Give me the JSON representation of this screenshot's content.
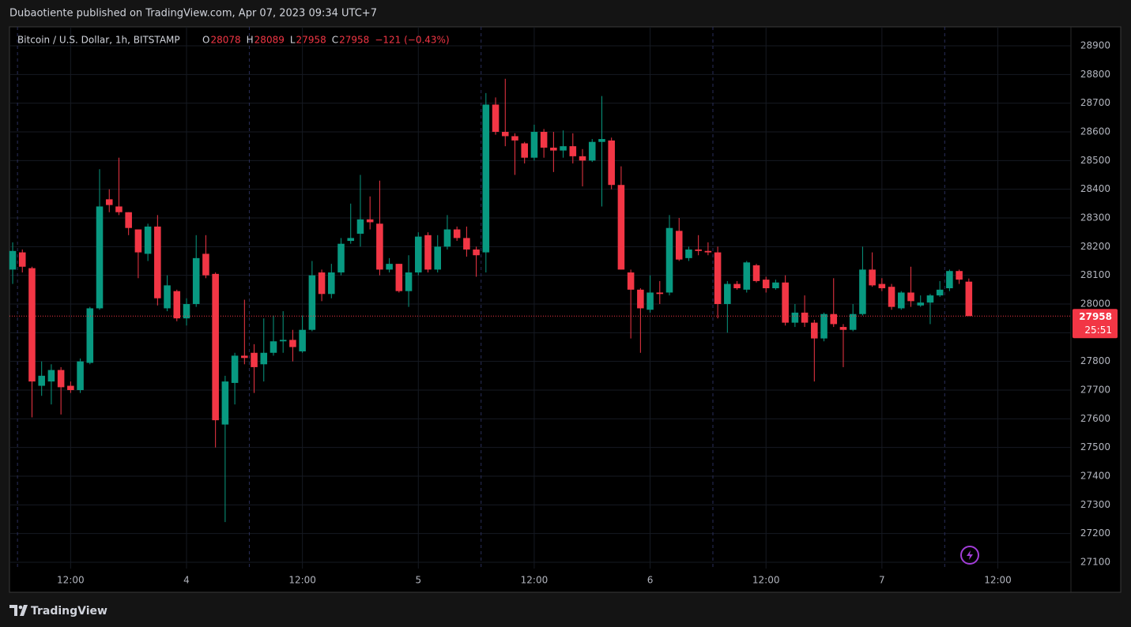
{
  "header": {
    "publisher": "Dubaotiente published on TradingView.com, Apr 07, 2023 09:34 UTC+7",
    "brand": "TradingView"
  },
  "chart_data": {
    "type": "candlestick",
    "title": "Bitcoin / U.S. Dollar, 1h, BITSTAMP",
    "legend_ohlc": {
      "O": 28078,
      "H": 28089,
      "L": 27958,
      "C": 27958,
      "change": "−121 (−0.43%)"
    },
    "last_price": 27958,
    "countdown": "25:51",
    "up_color": "#089981",
    "down_color": "#f23645",
    "grid": true,
    "ylim": [
      27078,
      28966
    ],
    "yticks": [
      27100,
      27200,
      27300,
      27400,
      27500,
      27600,
      27700,
      27800,
      27900,
      28000,
      28100,
      28200,
      28300,
      28400,
      28500,
      28600,
      28700,
      28800,
      28900
    ],
    "xlim": [
      -0.33,
      109.57
    ],
    "xticks": [
      {
        "value": 6,
        "label": "12:00"
      },
      {
        "value": 18,
        "label": "4"
      },
      {
        "value": 30,
        "label": "12:00"
      },
      {
        "value": 42,
        "label": "5"
      },
      {
        "value": 54,
        "label": "12:00"
      },
      {
        "value": 66,
        "label": "6"
      },
      {
        "value": 78,
        "label": "12:00"
      },
      {
        "value": 90,
        "label": "7"
      },
      {
        "value": 102,
        "label": "12:00"
      }
    ],
    "open": [
      28120,
      28180,
      28125,
      27715,
      27730,
      27770,
      27715,
      27700,
      27795,
      27985,
      28365,
      28340,
      28320,
      28260,
      28175,
      28270,
      27985,
      28045,
      27950,
      28000,
      28175,
      28105,
      27580,
      27725,
      27820,
      27830,
      27790,
      27830,
      27870,
      27875,
      27835,
      27910,
      28110,
      28035,
      28110,
      28220,
      28245,
      28295,
      28280,
      28120,
      28140,
      28045,
      28110,
      28240,
      28120,
      28200,
      28260,
      28230,
      28190,
      28180,
      28695,
      28600,
      28585,
      28560,
      28510,
      28600,
      28545,
      28535,
      28550,
      28515,
      28500,
      28565,
      28570,
      28415,
      28110,
      28050,
      27980,
      28040,
      28040,
      28255,
      28160,
      28190,
      28185,
      28180,
      28000,
      28070,
      28050,
      28135,
      28085,
      28055,
      28075,
      27935,
      27970,
      27935,
      27880,
      27965,
      27920,
      27910,
      27965,
      28120,
      28070,
      28060,
      27985,
      28040,
      27995,
      28005,
      28030,
      28055,
      28115,
      28078
    ],
    "high": [
      28215,
      28190,
      28130,
      27800,
      27790,
      27780,
      27730,
      27810,
      27990,
      28470,
      28400,
      28510,
      28320,
      28260,
      28280,
      28310,
      28100,
      28050,
      28020,
      28240,
      28240,
      28110,
      27750,
      27830,
      28015,
      27860,
      27950,
      27960,
      27975,
      27910,
      27960,
      28150,
      28120,
      28140,
      28230,
      28350,
      28450,
      28375,
      28430,
      28160,
      28140,
      28170,
      28250,
      28250,
      28240,
      28310,
      28270,
      28270,
      28200,
      28735,
      28720,
      28785,
      28595,
      28565,
      28625,
      28610,
      28600,
      28605,
      28595,
      28540,
      28575,
      28725,
      28580,
      28480,
      28120,
      28055,
      28100,
      28080,
      28310,
      28300,
      28200,
      28240,
      28215,
      28200,
      28080,
      28080,
      28150,
      28140,
      28095,
      28085,
      28100,
      28000,
      28030,
      27945,
      27970,
      28090,
      27930,
      28000,
      28200,
      28180,
      28090,
      28070,
      28045,
      28130,
      28030,
      28035,
      28080,
      28120,
      28120,
      28089
    ],
    "low": [
      28070,
      28110,
      27605,
      27680,
      27650,
      27615,
      27690,
      27690,
      27790,
      27980,
      28320,
      28310,
      28240,
      28090,
      28150,
      27995,
      27975,
      27940,
      27925,
      27990,
      28090,
      27500,
      27240,
      27650,
      27790,
      27690,
      27730,
      27820,
      27830,
      27800,
      27830,
      27905,
      28010,
      28020,
      28100,
      28210,
      28200,
      28260,
      28100,
      28110,
      28040,
      27990,
      28100,
      28110,
      28110,
      28190,
      28220,
      28165,
      28095,
      28110,
      28590,
      28550,
      28450,
      28490,
      28500,
      28510,
      28460,
      28510,
      28490,
      28410,
      28495,
      28340,
      28400,
      28120,
      27880,
      27830,
      27970,
      28000,
      28030,
      28150,
      28150,
      28170,
      28170,
      27950,
      27900,
      28050,
      28040,
      28075,
      28040,
      28050,
      27925,
      27920,
      27920,
      27730,
      27870,
      27920,
      27780,
      27905,
      27960,
      28060,
      28045,
      27980,
      27980,
      27990,
      27990,
      27930,
      28025,
      28045,
      28070,
      27958
    ],
    "close": [
      28185,
      28130,
      27730,
      27750,
      27770,
      27710,
      27700,
      27800,
      27985,
      28340,
      28345,
      28320,
      28265,
      28180,
      28270,
      28020,
      28065,
      27950,
      28000,
      28160,
      28100,
      27595,
      27730,
      27820,
      27812,
      27780,
      27830,
      27870,
      27875,
      27850,
      27910,
      28100,
      28035,
      28110,
      28210,
      28230,
      28295,
      28285,
      28120,
      28140,
      28045,
      28110,
      28235,
      28120,
      28200,
      28260,
      28230,
      28190,
      28170,
      28695,
      28600,
      28585,
      28570,
      28510,
      28600,
      28545,
      28535,
      28550,
      28515,
      28500,
      28565,
      28575,
      28415,
      28120,
      28050,
      27985,
      28040,
      28035,
      28265,
      28155,
      28190,
      28185,
      28180,
      28000,
      28070,
      28055,
      28145,
      28080,
      28055,
      28075,
      27935,
      27970,
      27935,
      27880,
      27965,
      27930,
      27910,
      27965,
      28120,
      28065,
      28055,
      27990,
      28040,
      28010,
      28005,
      28030,
      28050,
      28115,
      28085,
      27958
    ]
  }
}
